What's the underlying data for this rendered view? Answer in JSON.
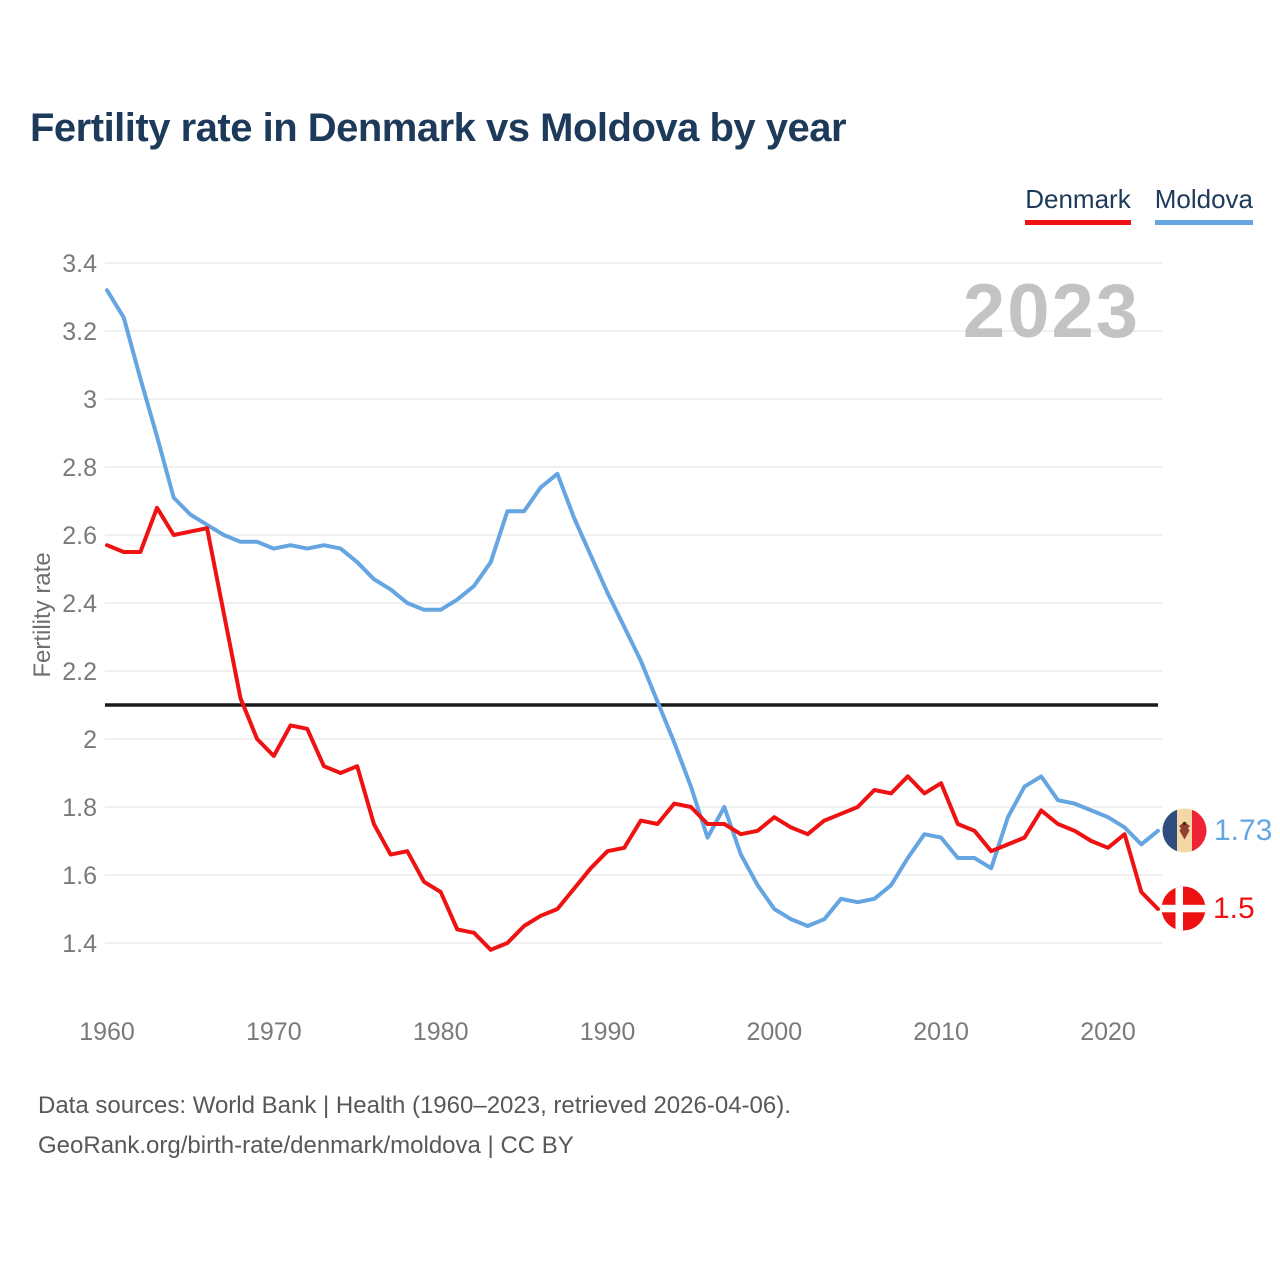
{
  "header": {
    "title": "Fertility rate in Denmark vs Moldova by year"
  },
  "watermark": "2023",
  "legend": {
    "items": [
      {
        "label": "Denmark",
        "color": "#ef1212"
      },
      {
        "label": "Moldova",
        "color": "#64a5e2"
      }
    ]
  },
  "end_labels": {
    "moldova": {
      "value": "1.73"
    },
    "denmark": {
      "value": "1.5"
    }
  },
  "footer": {
    "line1": "Data sources: World Bank | Health (1960–2023, retrieved 2026-04-06).",
    "line2": "GeoRank.org/birth-rate/denmark/moldova | CC BY"
  },
  "colors": {
    "title": "#1d3a5a",
    "axis_text": "#7a7a7a",
    "grid": "#ececec",
    "baseline": "#1a1a1a",
    "watermark": "#c3c3c3",
    "footer_text": "#585858",
    "denmark": "#ef1212",
    "moldova": "#64a5e2"
  },
  "chart_data": {
    "type": "line",
    "title": "Fertility rate in Denmark vs Moldova by year",
    "xlabel": "",
    "ylabel": "Fertility rate",
    "x_start": 1960,
    "x_end": 2023,
    "x_ticks": [
      1960,
      1970,
      1980,
      1990,
      2000,
      2010,
      2020
    ],
    "y_ticks": [
      3.4,
      3.2,
      3,
      2.8,
      2.6,
      2.4,
      2.2,
      2,
      1.8,
      1.6,
      1.4
    ],
    "ylim": [
      1.4,
      3.4
    ],
    "baseline_value": 2.1,
    "grid": true,
    "legend_position": "top-right",
    "series": [
      {
        "name": "Denmark",
        "color": "#ef1212",
        "values": [
          2.57,
          2.55,
          2.55,
          2.68,
          2.6,
          2.61,
          2.62,
          2.37,
          2.12,
          2.0,
          1.95,
          2.04,
          2.03,
          1.92,
          1.9,
          1.92,
          1.75,
          1.66,
          1.67,
          1.58,
          1.55,
          1.44,
          1.43,
          1.38,
          1.4,
          1.45,
          1.48,
          1.5,
          1.56,
          1.62,
          1.67,
          1.68,
          1.76,
          1.75,
          1.81,
          1.8,
          1.75,
          1.75,
          1.72,
          1.73,
          1.77,
          1.74,
          1.72,
          1.76,
          1.78,
          1.8,
          1.85,
          1.84,
          1.89,
          1.84,
          1.87,
          1.75,
          1.73,
          1.67,
          1.69,
          1.71,
          1.79,
          1.75,
          1.73,
          1.7,
          1.68,
          1.72,
          1.55,
          1.5
        ]
      },
      {
        "name": "Moldova",
        "color": "#64a5e2",
        "values": [
          3.32,
          3.24,
          3.06,
          2.89,
          2.71,
          2.66,
          2.63,
          2.6,
          2.58,
          2.58,
          2.56,
          2.57,
          2.56,
          2.57,
          2.56,
          2.52,
          2.47,
          2.44,
          2.4,
          2.38,
          2.38,
          2.41,
          2.45,
          2.52,
          2.67,
          2.67,
          2.74,
          2.78,
          2.65,
          2.54,
          2.43,
          2.33,
          2.23,
          2.11,
          1.99,
          1.86,
          1.71,
          1.8,
          1.66,
          1.57,
          1.5,
          1.47,
          1.45,
          1.47,
          1.53,
          1.52,
          1.53,
          1.57,
          1.65,
          1.72,
          1.71,
          1.65,
          1.65,
          1.62,
          1.77,
          1.86,
          1.89,
          1.82,
          1.81,
          1.79,
          1.77,
          1.74,
          1.69,
          1.73
        ]
      }
    ]
  }
}
